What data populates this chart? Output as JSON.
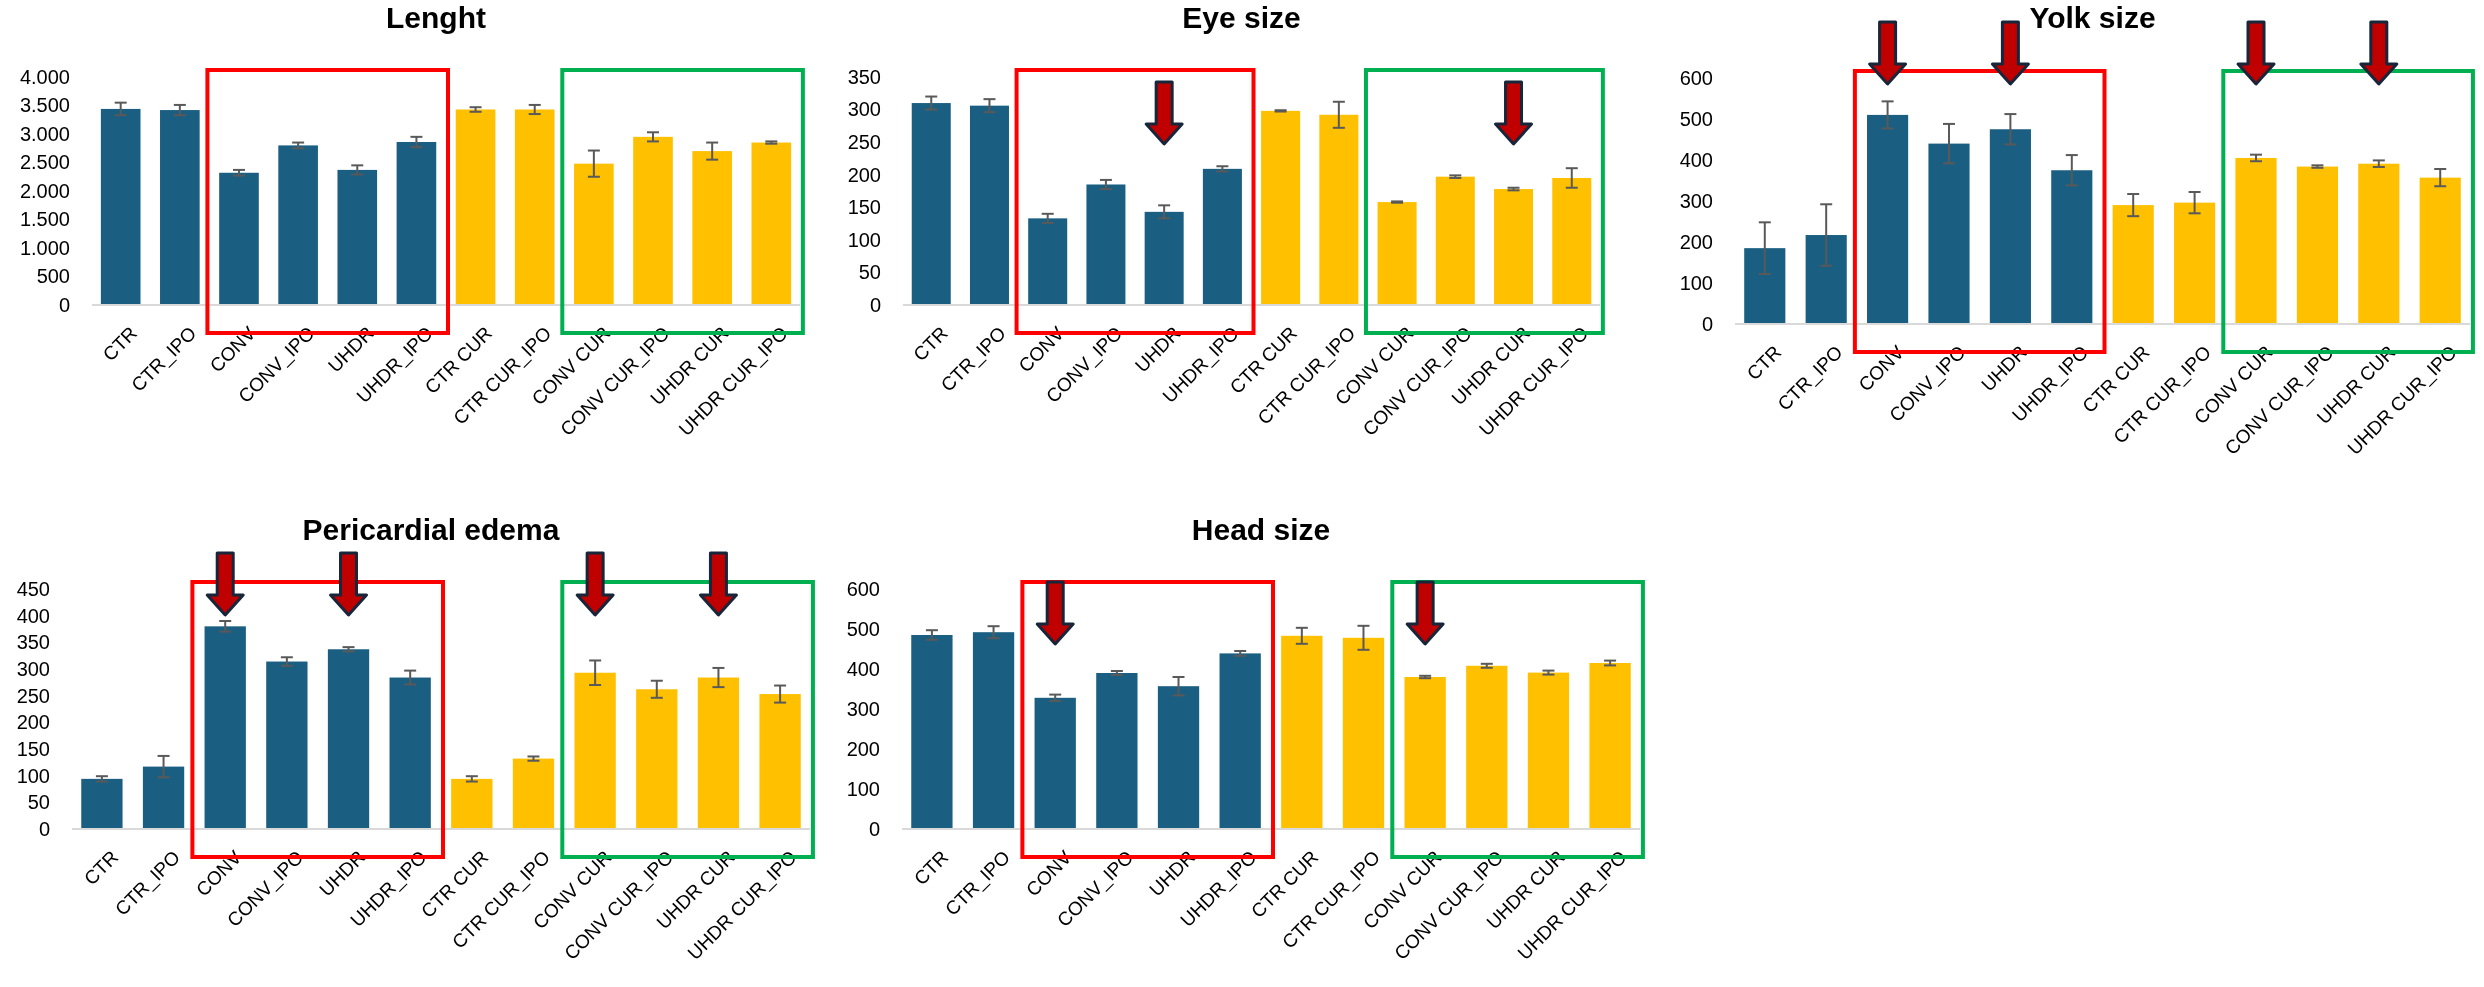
{
  "chart_data": [
    {
      "type": "bar",
      "title": "Lenght",
      "categories": [
        "CTR",
        "CTR_IPO",
        "CONV",
        "CONV_IPO",
        "UHDR",
        "UHDR_IPO",
        "CTR CUR",
        "CTR CUR_IPO",
        "CONV CUR",
        "CONV CUR_IPO",
        "UHDR CUR",
        "UHDR CUR_IPO"
      ],
      "values": [
        3440,
        3420,
        2320,
        2800,
        2370,
        2860,
        3430,
        3430,
        2480,
        2950,
        2700,
        2850
      ],
      "errors": [
        110,
        90,
        50,
        50,
        80,
        90,
        40,
        80,
        230,
        80,
        150,
        20
      ],
      "colors": [
        "#1a5f82",
        "#1a5f82",
        "#1a5f82",
        "#1a5f82",
        "#1a5f82",
        "#1a5f82",
        "#ffc000",
        "#ffc000",
        "#ffc000",
        "#ffc000",
        "#ffc000",
        "#ffc000"
      ],
      "ylim": [
        0,
        4000
      ],
      "yticks": [
        0,
        {
          "value": 500,
          "label": "500"
        },
        {
          "value": 1000,
          "label": "1.000"
        },
        {
          "value": 1500,
          "label": "1.500"
        },
        {
          "value": 2000,
          "label": "2.000"
        },
        {
          "value": 2500,
          "label": "2.500"
        },
        {
          "value": 3000,
          "label": "3.000"
        },
        {
          "value": 3500,
          "label": "3.500"
        },
        {
          "value": 4000,
          "label": "4.000"
        }
      ],
      "grid": false
    },
    {
      "type": "bar",
      "title": "Eye size",
      "categories": [
        "CTR",
        "CTR_IPO",
        "CONV",
        "CONV_IPO",
        "UHDR",
        "UHDR_IPO",
        "CTR CUR",
        "CTR CUR_IPO",
        "CONV CUR",
        "CONV CUR_IPO",
        "UHDR CUR",
        "UHDR CUR_IPO"
      ],
      "values": [
        310,
        306,
        133,
        185,
        143,
        209,
        298,
        292,
        158,
        197,
        178,
        195
      ],
      "errors": [
        10,
        10,
        7,
        7,
        10,
        4,
        1,
        20,
        1,
        2,
        2,
        15
      ],
      "colors": [
        "#1a5f82",
        "#1a5f82",
        "#1a5f82",
        "#1a5f82",
        "#1a5f82",
        "#1a5f82",
        "#ffc000",
        "#ffc000",
        "#ffc000",
        "#ffc000",
        "#ffc000",
        "#ffc000"
      ],
      "ylim": [
        0,
        350
      ],
      "yticks": [
        0,
        50,
        100,
        150,
        200,
        250,
        300,
        350
      ],
      "grid": false
    },
    {
      "type": "bar",
      "title": "Yolk size",
      "categories": [
        "CTR",
        "CTR_IPO",
        "CONV",
        "CONV_IPO",
        "UHDR",
        "UHDR_IPO",
        "CTR CUR",
        "CTR CUR_IPO",
        "CONV CUR",
        "CONV CUR_IPO",
        "UHDR CUR",
        "UHDR CUR_IPO"
      ],
      "values": [
        185,
        217,
        510,
        440,
        475,
        375,
        290,
        296,
        405,
        384,
        391,
        357
      ],
      "errors": [
        63,
        75,
        33,
        48,
        37,
        37,
        27,
        26,
        8,
        3,
        8,
        21
      ],
      "colors": [
        "#1a5f82",
        "#1a5f82",
        "#1a5f82",
        "#1a5f82",
        "#1a5f82",
        "#1a5f82",
        "#ffc000",
        "#ffc000",
        "#ffc000",
        "#ffc000",
        "#ffc000",
        "#ffc000"
      ],
      "ylim": [
        0,
        600
      ],
      "yticks": [
        0,
        100,
        200,
        300,
        400,
        500,
        600
      ],
      "grid": false
    },
    {
      "type": "bar",
      "title": "Pericardial edema",
      "categories": [
        "CTR",
        "CTR_IPO",
        "CONV",
        "CONV_IPO",
        "UHDR",
        "UHDR_IPO",
        "CTR CUR",
        "CTR CUR_IPO",
        "CONV CUR",
        "CONV CUR_IPO",
        "UHDR CUR",
        "UHDR CUR_IPO"
      ],
      "values": [
        94,
        117,
        380,
        314,
        337,
        284,
        94,
        132,
        293,
        262,
        284,
        253
      ],
      "errors": [
        5,
        20,
        10,
        8,
        4,
        13,
        5,
        4,
        23,
        16,
        18,
        16
      ],
      "colors": [
        "#1a5f82",
        "#1a5f82",
        "#1a5f82",
        "#1a5f82",
        "#1a5f82",
        "#1a5f82",
        "#ffc000",
        "#ffc000",
        "#ffc000",
        "#ffc000",
        "#ffc000",
        "#ffc000"
      ],
      "ylim": [
        0,
        450
      ],
      "yticks": [
        0,
        50,
        100,
        150,
        200,
        250,
        300,
        350,
        400,
        450
      ],
      "grid": false
    },
    {
      "type": "bar",
      "title": "Head size",
      "categories": [
        "CTR",
        "CTR_IPO",
        "CONV",
        "CONV_IPO",
        "UHDR",
        "UHDR_IPO",
        "CTR CUR",
        "CTR CUR_IPO",
        "CONV CUR",
        "CONV CUR_IPO",
        "UHDR CUR",
        "UHDR CUR_IPO"
      ],
      "values": [
        485,
        492,
        328,
        390,
        357,
        439,
        483,
        478,
        380,
        408,
        391,
        415
      ],
      "errors": [
        12,
        15,
        8,
        5,
        23,
        6,
        20,
        30,
        3,
        5,
        5,
        6
      ],
      "colors": [
        "#1a5f82",
        "#1a5f82",
        "#1a5f82",
        "#1a5f82",
        "#1a5f82",
        "#1a5f82",
        "#ffc000",
        "#ffc000",
        "#ffc000",
        "#ffc000",
        "#ffc000",
        "#ffc000"
      ],
      "ylim": [
        0,
        600
      ],
      "yticks": [
        0,
        100,
        200,
        300,
        400,
        500,
        600
      ],
      "grid": false
    }
  ]
}
